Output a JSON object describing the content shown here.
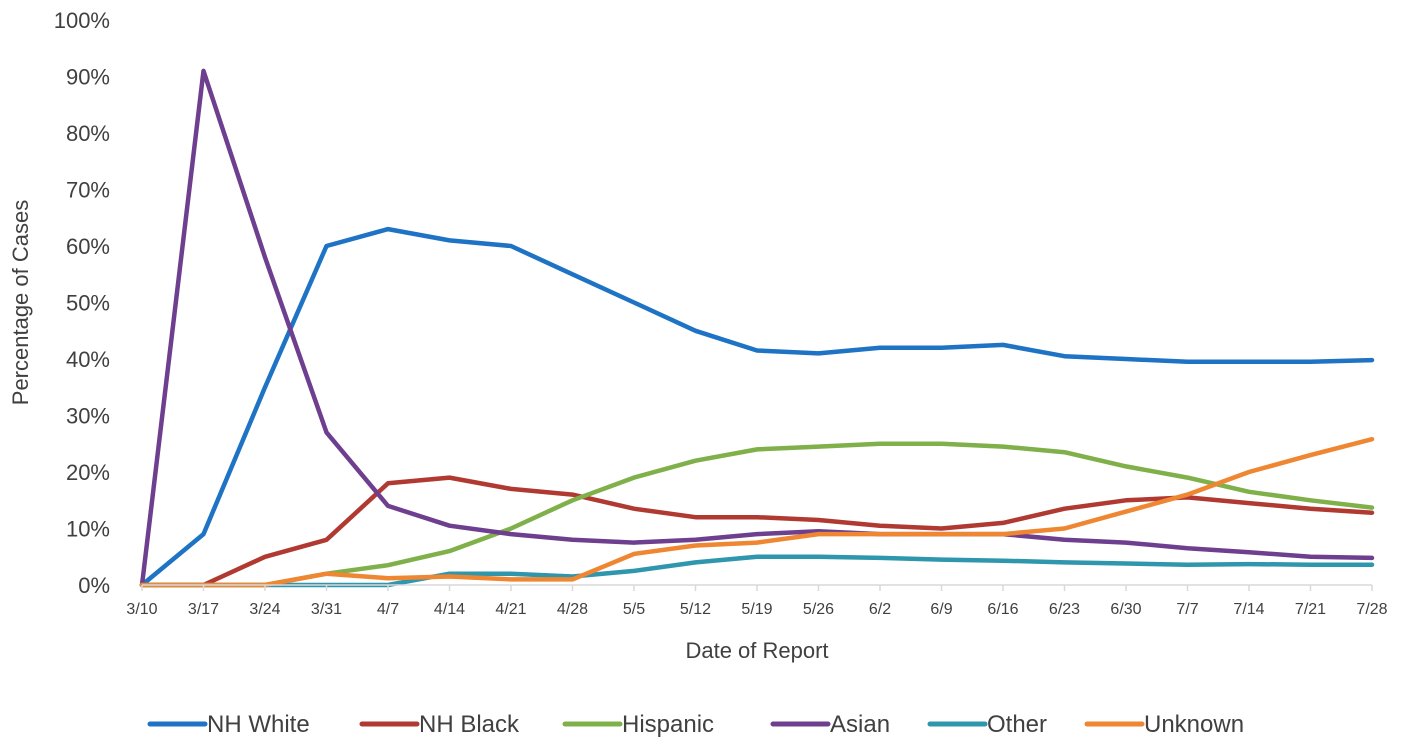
{
  "chart_data": {
    "type": "line",
    "xlabel": "Date of Report",
    "ylabel": "Percentage of Cases",
    "ylim": [
      0,
      100
    ],
    "y_ticks": [
      "0%",
      "10%",
      "20%",
      "30%",
      "40%",
      "50%",
      "60%",
      "70%",
      "80%",
      "90%",
      "100%"
    ],
    "x_tick_labels": [
      "3/10",
      "3/17",
      "3/24",
      "3/31",
      "4/7",
      "4/14",
      "4/21",
      "4/28",
      "5/5",
      "5/12",
      "5/19",
      "5/26",
      "6/2",
      "6/9",
      "6/16",
      "6/23",
      "6/30",
      "7/7",
      "7/14",
      "7/21",
      "7/28"
    ],
    "x": [
      "3/10",
      "3/17",
      "3/24",
      "3/31",
      "4/7",
      "4/14",
      "4/21",
      "4/28",
      "5/5",
      "5/12",
      "5/19",
      "5/26",
      "6/2",
      "6/9",
      "6/16",
      "6/23",
      "6/30",
      "7/7",
      "7/14",
      "7/21",
      "7/28"
    ],
    "grid": false,
    "legend_position": "bottom",
    "series": [
      {
        "name": "NH White",
        "color": "#1f73c4",
        "values": [
          0,
          9,
          35,
          60,
          63,
          61,
          60,
          55,
          50,
          45,
          41.5,
          41,
          42,
          42,
          42.5,
          40.5,
          40,
          39.5,
          39.5,
          39.5,
          39.8
        ]
      },
      {
        "name": "NH Black",
        "color": "#b03a32",
        "values": [
          0,
          0,
          5,
          8,
          18,
          19,
          17,
          16,
          13.5,
          12,
          12,
          11.5,
          10.5,
          10,
          11,
          13.5,
          15,
          15.5,
          14.5,
          13.5,
          12.8
        ]
      },
      {
        "name": "Hispanic",
        "color": "#7fb04a",
        "values": [
          0,
          0,
          0,
          2,
          3.5,
          6,
          10,
          15,
          19,
          22,
          24,
          24.5,
          25,
          25,
          24.5,
          23.5,
          21,
          19,
          16.5,
          15,
          13.7
        ]
      },
      {
        "name": "Asian",
        "color": "#6f3f8f",
        "values": [
          0,
          91,
          58,
          27,
          14,
          10.5,
          9,
          8,
          7.5,
          8,
          9,
          9.5,
          9,
          9,
          9,
          8,
          7.5,
          6.5,
          5.8,
          5,
          4.8
        ]
      },
      {
        "name": "Other",
        "color": "#2e96ad",
        "values": [
          0,
          0,
          0,
          0,
          0,
          2,
          2,
          1.5,
          2.5,
          4,
          5,
          5,
          4.8,
          4.5,
          4.3,
          4,
          3.8,
          3.6,
          3.7,
          3.6,
          3.6
        ]
      },
      {
        "name": "Unknown",
        "color": "#ef8632",
        "values": [
          0,
          0,
          0,
          2,
          1.2,
          1.5,
          1,
          1,
          5.5,
          7,
          7.5,
          9,
          9,
          9,
          9,
          10,
          13,
          16,
          20,
          23,
          25.8
        ]
      }
    ]
  }
}
